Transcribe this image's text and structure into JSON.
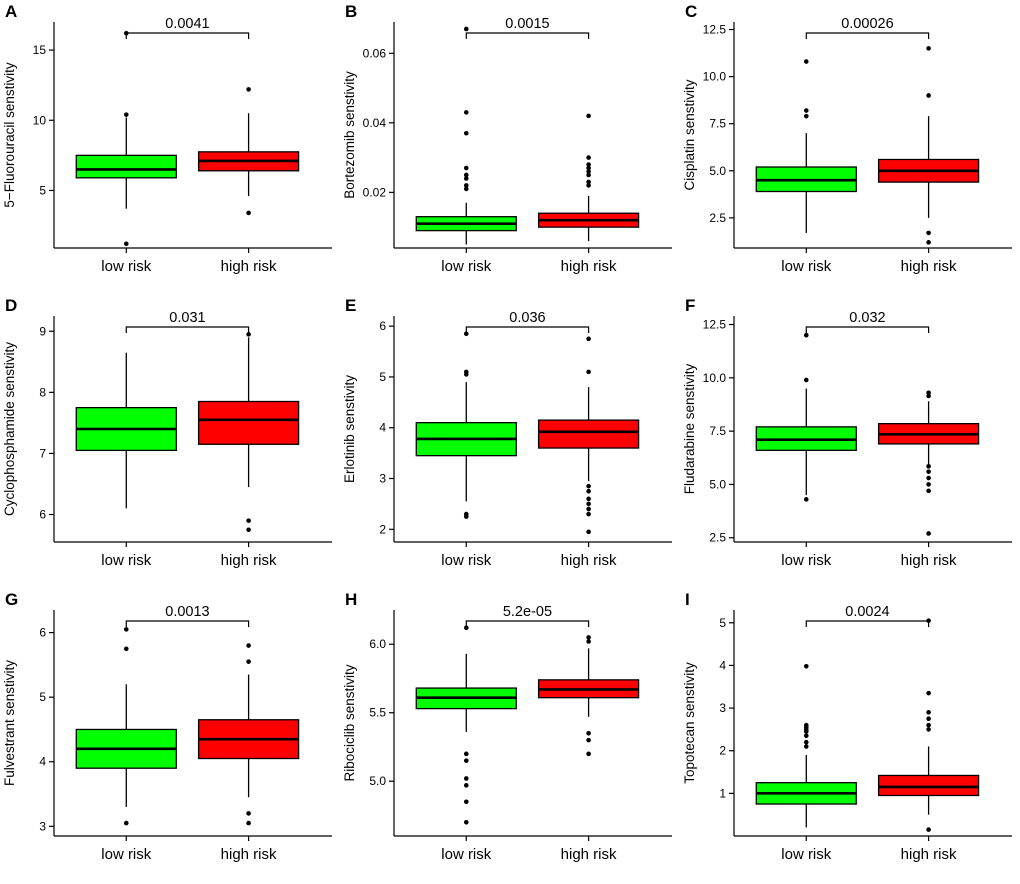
{
  "figure": {
    "background": "#ffffff",
    "box_colors": {
      "low_risk": "#00ff00",
      "high_risk": "#ff0000"
    },
    "stroke_color": "#000000",
    "group_labels": [
      "low risk",
      "high risk"
    ]
  },
  "chart_data": [
    {
      "type": "boxplot",
      "panel": "A",
      "ylabel": "5−Fluorouracil senstivity",
      "pvalue": "0.0041",
      "categories": [
        "low risk",
        "high risk"
      ],
      "ylim": [
        0.9,
        17.0
      ],
      "yticks": [
        5,
        10,
        15
      ],
      "ytick_labels": [
        "5",
        "10",
        "15"
      ],
      "series": [
        {
          "name": "low risk",
          "color": "#00ff00",
          "whisker_low": 3.7,
          "q1": 5.9,
          "median": 6.5,
          "q3": 7.5,
          "whisker_high": 10.2,
          "outliers": [
            16.2,
            10.4,
            1.2
          ]
        },
        {
          "name": "high risk",
          "color": "#ff0000",
          "whisker_low": 4.6,
          "q1": 6.4,
          "median": 7.1,
          "q3": 7.75,
          "whisker_high": 10.5,
          "outliers": [
            12.2,
            3.4
          ]
        }
      ]
    },
    {
      "type": "boxplot",
      "panel": "B",
      "ylabel": "Bortezomib senstivity",
      "pvalue": "0.0015",
      "categories": [
        "low risk",
        "high risk"
      ],
      "ylim": [
        0.004,
        0.069
      ],
      "yticks": [
        0.02,
        0.04,
        0.06
      ],
      "ytick_labels": [
        "0.02",
        "0.04",
        "0.06"
      ],
      "series": [
        {
          "name": "low risk",
          "color": "#00ff00",
          "whisker_low": 0.005,
          "q1": 0.009,
          "median": 0.011,
          "q3": 0.013,
          "whisker_high": 0.017,
          "outliers": [
            0.067,
            0.043,
            0.037,
            0.027,
            0.025,
            0.024,
            0.022,
            0.021
          ]
        },
        {
          "name": "high risk",
          "color": "#ff0000",
          "whisker_low": 0.006,
          "q1": 0.01,
          "median": 0.012,
          "q3": 0.014,
          "whisker_high": 0.019,
          "outliers": [
            0.042,
            0.03,
            0.028,
            0.027,
            0.026,
            0.025,
            0.023,
            0.022
          ]
        }
      ]
    },
    {
      "type": "boxplot",
      "panel": "C",
      "ylabel": "Cisplatin senstivity",
      "pvalue": "0.00026",
      "categories": [
        "low risk",
        "high risk"
      ],
      "ylim": [
        0.9,
        12.9
      ],
      "yticks": [
        2.5,
        5.0,
        7.5,
        10.0,
        12.5
      ],
      "ytick_labels": [
        "2.5",
        "5.0",
        "7.5",
        "10.0",
        "12.5"
      ],
      "series": [
        {
          "name": "low risk",
          "color": "#00ff00",
          "whisker_low": 1.7,
          "q1": 3.9,
          "median": 4.5,
          "q3": 5.2,
          "whisker_high": 7.0,
          "outliers": [
            10.8,
            8.2,
            7.9
          ]
        },
        {
          "name": "high risk",
          "color": "#ff0000",
          "whisker_low": 2.5,
          "q1": 4.4,
          "median": 5.0,
          "q3": 5.6,
          "whisker_high": 7.9,
          "outliers": [
            11.5,
            9.0,
            1.7,
            1.2
          ]
        }
      ]
    },
    {
      "type": "boxplot",
      "panel": "D",
      "ylabel": "Cyclophosphamide senstivity",
      "pvalue": "0.031",
      "categories": [
        "low risk",
        "high risk"
      ],
      "ylim": [
        5.55,
        9.25
      ],
      "yticks": [
        6,
        7,
        8,
        9
      ],
      "ytick_labels": [
        "6",
        "7",
        "8",
        "9"
      ],
      "series": [
        {
          "name": "low risk",
          "color": "#00ff00",
          "whisker_low": 6.1,
          "q1": 7.05,
          "median": 7.4,
          "q3": 7.75,
          "whisker_high": 8.65,
          "outliers": []
        },
        {
          "name": "high risk",
          "color": "#ff0000",
          "whisker_low": 6.45,
          "q1": 7.15,
          "median": 7.55,
          "q3": 7.85,
          "whisker_high": 8.9,
          "outliers": [
            8.95,
            5.9,
            5.75
          ]
        }
      ]
    },
    {
      "type": "boxplot",
      "panel": "E",
      "ylabel": "Erlotinib senstivity",
      "pvalue": "0.036",
      "categories": [
        "low risk",
        "high risk"
      ],
      "ylim": [
        1.75,
        6.2
      ],
      "yticks": [
        2,
        3,
        4,
        5,
        6
      ],
      "ytick_labels": [
        "2",
        "3",
        "4",
        "5",
        "6"
      ],
      "series": [
        {
          "name": "low risk",
          "color": "#00ff00",
          "whisker_low": 2.55,
          "q1": 3.45,
          "median": 3.78,
          "q3": 4.1,
          "whisker_high": 4.9,
          "outliers": [
            5.85,
            5.1,
            5.05,
            2.3,
            2.25
          ]
        },
        {
          "name": "high risk",
          "color": "#ff0000",
          "whisker_low": 2.95,
          "q1": 3.6,
          "median": 3.92,
          "q3": 4.15,
          "whisker_high": 4.8,
          "outliers": [
            5.75,
            5.1,
            2.85,
            2.75,
            2.6,
            2.5,
            2.4,
            2.3,
            1.95
          ]
        }
      ]
    },
    {
      "type": "boxplot",
      "panel": "F",
      "ylabel": "Fludarabine senstivity",
      "pvalue": "0.032",
      "categories": [
        "low risk",
        "high risk"
      ],
      "ylim": [
        2.3,
        12.9
      ],
      "yticks": [
        2.5,
        5.0,
        7.5,
        10.0,
        12.5
      ],
      "ytick_labels": [
        "2.5",
        "5.0",
        "7.5",
        "10.0",
        "12.5"
      ],
      "series": [
        {
          "name": "low risk",
          "color": "#00ff00",
          "whisker_low": 4.5,
          "q1": 6.6,
          "median": 7.1,
          "q3": 7.7,
          "whisker_high": 9.5,
          "outliers": [
            12.0,
            9.9,
            4.3
          ]
        },
        {
          "name": "high risk",
          "color": "#ff0000",
          "whisker_low": 5.9,
          "q1": 6.9,
          "median": 7.35,
          "q3": 7.85,
          "whisker_high": 8.9,
          "outliers": [
            9.3,
            9.15,
            5.85,
            5.6,
            5.3,
            5.0,
            4.7,
            2.7
          ]
        }
      ]
    },
    {
      "type": "boxplot",
      "panel": "G",
      "ylabel": "Fulvestrant senstivity",
      "pvalue": "0.0013",
      "categories": [
        "low risk",
        "high risk"
      ],
      "ylim": [
        2.85,
        6.35
      ],
      "yticks": [
        3,
        4,
        5,
        6
      ],
      "ytick_labels": [
        "3",
        "4",
        "5",
        "6"
      ],
      "series": [
        {
          "name": "low risk",
          "color": "#00ff00",
          "whisker_low": 3.3,
          "q1": 3.9,
          "median": 4.2,
          "q3": 4.5,
          "whisker_high": 5.2,
          "outliers": [
            6.05,
            5.75,
            3.05
          ]
        },
        {
          "name": "high risk",
          "color": "#ff0000",
          "whisker_low": 3.45,
          "q1": 4.05,
          "median": 4.35,
          "q3": 4.65,
          "whisker_high": 5.35,
          "outliers": [
            5.8,
            5.55,
            3.2,
            3.05
          ]
        }
      ]
    },
    {
      "type": "boxplot",
      "panel": "H",
      "ylabel": "Ribociclib senstivity",
      "pvalue": "5.2e-05",
      "categories": [
        "low risk",
        "high risk"
      ],
      "ylim": [
        4.6,
        6.25
      ],
      "yticks": [
        5.0,
        5.5,
        6.0
      ],
      "ytick_labels": [
        "5.0",
        "5.5",
        "6.0"
      ],
      "series": [
        {
          "name": "low risk",
          "color": "#00ff00",
          "whisker_low": 5.36,
          "q1": 5.53,
          "median": 5.61,
          "q3": 5.68,
          "whisker_high": 5.93,
          "outliers": [
            6.12,
            5.2,
            5.15,
            5.02,
            4.97,
            4.85,
            4.7
          ]
        },
        {
          "name": "high risk",
          "color": "#ff0000",
          "whisker_low": 5.47,
          "q1": 5.61,
          "median": 5.67,
          "q3": 5.74,
          "whisker_high": 5.97,
          "outliers": [
            6.05,
            6.02,
            5.35,
            5.3,
            5.2
          ]
        }
      ]
    },
    {
      "type": "boxplot",
      "panel": "I",
      "ylabel": "Topotecan senstivity",
      "pvalue": "0.0024",
      "categories": [
        "low risk",
        "high risk"
      ],
      "ylim": [
        0.0,
        5.3
      ],
      "yticks": [
        1,
        2,
        3,
        4,
        5
      ],
      "ytick_labels": [
        "1",
        "2",
        "3",
        "4",
        "5"
      ],
      "series": [
        {
          "name": "low risk",
          "color": "#00ff00",
          "whisker_low": 0.2,
          "q1": 0.75,
          "median": 1.0,
          "q3": 1.25,
          "whisker_high": 1.9,
          "outliers": [
            3.98,
            2.6,
            2.55,
            2.5,
            2.45,
            2.35,
            2.2,
            2.1
          ]
        },
        {
          "name": "high risk",
          "color": "#ff0000",
          "whisker_low": 0.5,
          "q1": 0.95,
          "median": 1.15,
          "q3": 1.42,
          "whisker_high": 2.1,
          "outliers": [
            5.05,
            3.35,
            2.9,
            2.75,
            2.6,
            2.5,
            0.15
          ]
        }
      ]
    }
  ]
}
